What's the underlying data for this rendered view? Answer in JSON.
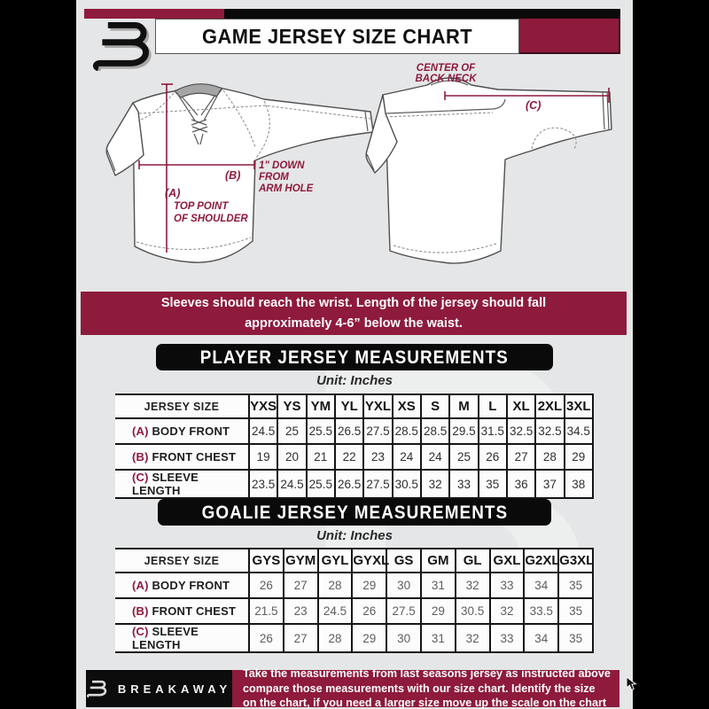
{
  "title": "GAME JERSEY SIZE CHART",
  "diagram": {
    "center_back_neck_line1": "CENTER OF",
    "center_back_neck_line2": "BACK NECK",
    "a_key": "(A)",
    "a_line1": "TOP POINT",
    "a_line2": "OF SHOULDER",
    "b_key": "(B)",
    "b_line1": "1\" DOWN",
    "b_line2": "FROM",
    "b_line3": "ARM HOLE",
    "c_key": "(C)"
  },
  "notice": {
    "line1": "Sleeves should reach the wrist. Length of the jersey should fall",
    "line2": "approximately 4-6” below the waist."
  },
  "player": {
    "heading": "PLAYER JERSEY MEASUREMENTS",
    "unit": "Unit: Inches",
    "corner": "JERSEY SIZE",
    "sizes": [
      "YXS",
      "YS",
      "YM",
      "YL",
      "YXL",
      "XS",
      "S",
      "M",
      "L",
      "XL",
      "2XL",
      "3XL"
    ],
    "rows": [
      {
        "key": "(A)",
        "label": "BODY FRONT",
        "values": [
          "24.5",
          "25",
          "25.5",
          "26.5",
          "27.5",
          "28.5",
          "28.5",
          "29.5",
          "31.5",
          "32.5",
          "32.5",
          "34.5"
        ]
      },
      {
        "key": "(B)",
        "label": "FRONT CHEST",
        "values": [
          "19",
          "20",
          "21",
          "22",
          "23",
          "24",
          "24",
          "25",
          "26",
          "27",
          "28",
          "29"
        ]
      },
      {
        "key": "(C)",
        "label": "SLEEVE LENGTH",
        "values": [
          "23.5",
          "24.5",
          "25.5",
          "26.5",
          "27.5",
          "30.5",
          "32",
          "33",
          "35",
          "36",
          "37",
          "38"
        ]
      }
    ]
  },
  "goalie": {
    "heading": "GOALIE JERSEY MEASUREMENTS",
    "unit": "Unit: Inches",
    "corner": "JERSEY SIZE",
    "sizes": [
      "GYS",
      "GYM",
      "GYL",
      "GYXL",
      "GS",
      "GM",
      "GL",
      "GXL",
      "G2XL",
      "G3XL"
    ],
    "rows": [
      {
        "key": "(A)",
        "label": "BODY FRONT",
        "values": [
          "26",
          "27",
          "28",
          "29",
          "30",
          "31",
          "32",
          "33",
          "34",
          "35"
        ]
      },
      {
        "key": "(B)",
        "label": "FRONT CHEST",
        "values": [
          "21.5",
          "23",
          "24.5",
          "26",
          "27.5",
          "29",
          "30.5",
          "32",
          "33.5",
          "35"
        ]
      },
      {
        "key": "(C)",
        "label": "SLEEVE LENGTH",
        "values": [
          "26",
          "27",
          "28",
          "29",
          "30",
          "31",
          "32",
          "33",
          "34",
          "35"
        ]
      }
    ]
  },
  "footer": {
    "brand": "BREAKAWAY",
    "line1": "Take the measurements from last seasons jersey as instructed above",
    "line2": "compare those measurements with our size chart. Identify the size",
    "line3": "on the chart, if you need a larger size move up the scale on the chart"
  },
  "colors": {
    "maroon": "#8e1a3c",
    "black": "#0a0a0a",
    "background": "#e5e6e7"
  }
}
